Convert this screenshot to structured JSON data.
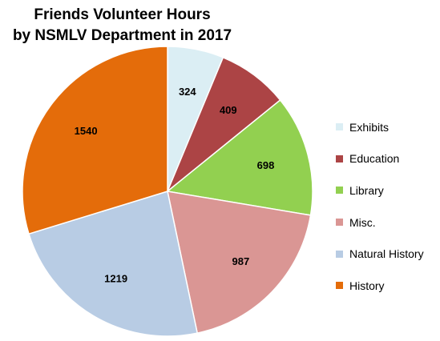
{
  "chart_data": {
    "type": "pie",
    "title": "Friends Volunteer Hours",
    "subtitle": "by NSMLV Department in 2017",
    "start_angle_deg": 0,
    "direction": "clockwise",
    "legend_position": "right",
    "slices": [
      {
        "name": "Exhibits",
        "value": 324,
        "color": "#DBEEF4"
      },
      {
        "name": "Education",
        "value": 409,
        "color": "#AC4445"
      },
      {
        "name": "Library",
        "value": 698,
        "color": "#92D050"
      },
      {
        "name": "Misc.",
        "value": 987,
        "color": "#DA9694"
      },
      {
        "name": "Natural History",
        "value": 1219,
        "color": "#B8CCE4"
      },
      {
        "name": "History",
        "value": 1540,
        "color": "#E46C0A"
      }
    ]
  }
}
